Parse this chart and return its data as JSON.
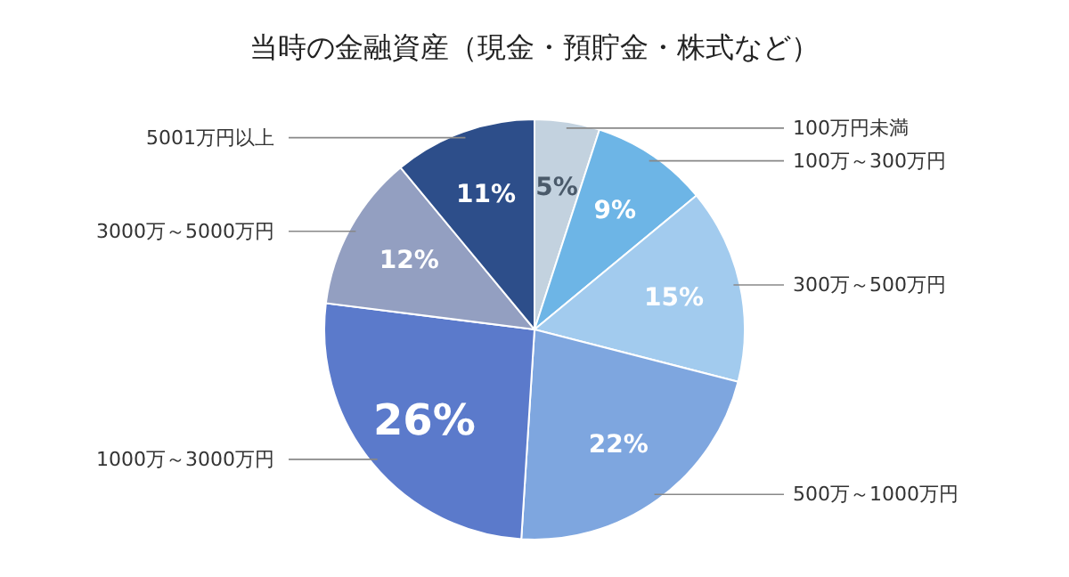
{
  "chart_data": {
    "type": "pie",
    "title": "当時の金融資産（現金・預貯金・株式など）",
    "categories": [
      "100万円未満",
      "100万～300万円",
      "300万～500万円",
      "500万～1000万円",
      "1000万～3000万円",
      "3000万～5000万円",
      "5001万円以上"
    ],
    "values": [
      5,
      9,
      15,
      22,
      26,
      12,
      11
    ],
    "colors": [
      "#c3d2df",
      "#6db5e6",
      "#a2cbee",
      "#7ea6df",
      "#5b7acb",
      "#939fc1",
      "#2d4e8a"
    ],
    "value_labels": [
      "5%",
      "9%",
      "15%",
      "22%",
      "26%",
      "12%",
      "11%"
    ]
  }
}
